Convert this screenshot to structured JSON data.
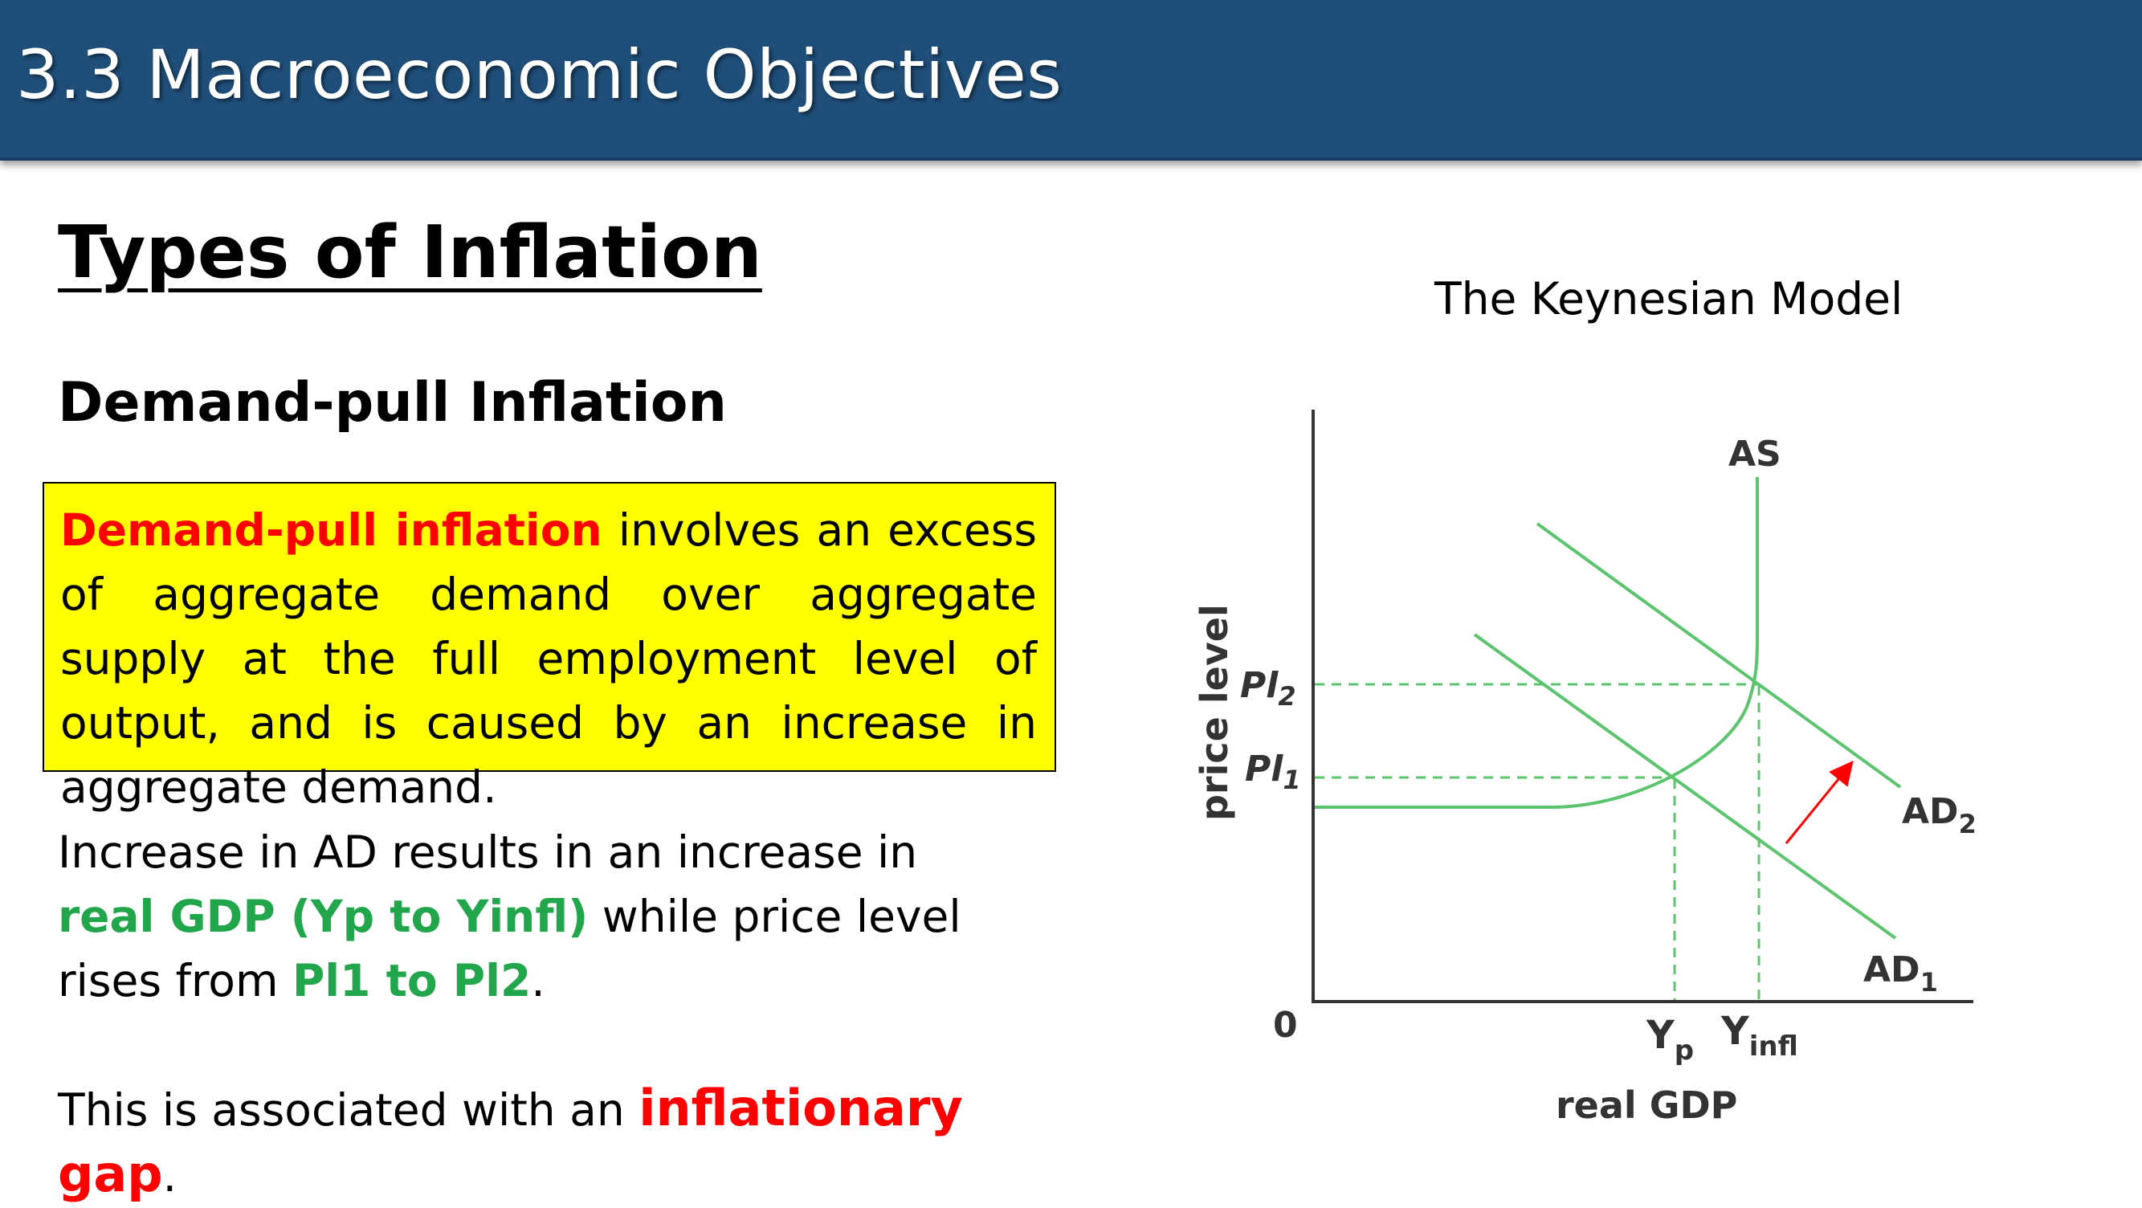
{
  "header": {
    "title": "3.3 Macroeconomic Objectives"
  },
  "content": {
    "section_title": "Types of Inflation",
    "subsection_title": "Demand-pull Inflation",
    "definition": {
      "term": "Demand-pull inflation",
      "text": " involves an excess of aggregate demand over aggregate supply at the full employment level of output, and is caused by an increase in aggregate demand."
    },
    "paragraph1": {
      "part1": "Increase in AD results in an increase in ",
      "highlight1": "real GDP (Yp to Yinfl)",
      "part2": " while price level rises from ",
      "highlight2": "Pl1 to Pl2",
      "part3": "."
    },
    "paragraph2": {
      "part1": "This is associated with an ",
      "highlight": "inflationary gap",
      "part2": "."
    }
  },
  "diagram": {
    "title": "The Keynesian Model",
    "y_axis_label": "price level",
    "x_axis_label": "real GDP",
    "origin_label": "0",
    "curve_labels": {
      "as": "AS",
      "ad1_main": "AD",
      "ad1_sub": "1",
      "ad2_main": "AD",
      "ad2_sub": "2"
    },
    "price_labels": {
      "pl1_main": "Pl",
      "pl1_sub": "1",
      "pl2_main": "Pl",
      "pl2_sub": "2"
    },
    "output_labels": {
      "yp_main": "Y",
      "yp_sub": "p",
      "yinfl_main": "Y",
      "yinfl_sub": "infl"
    },
    "colors": {
      "curves": "#5cc46e",
      "axes": "#333333",
      "arrow": "#ff0000",
      "dashed": "#5cc46e"
    }
  }
}
